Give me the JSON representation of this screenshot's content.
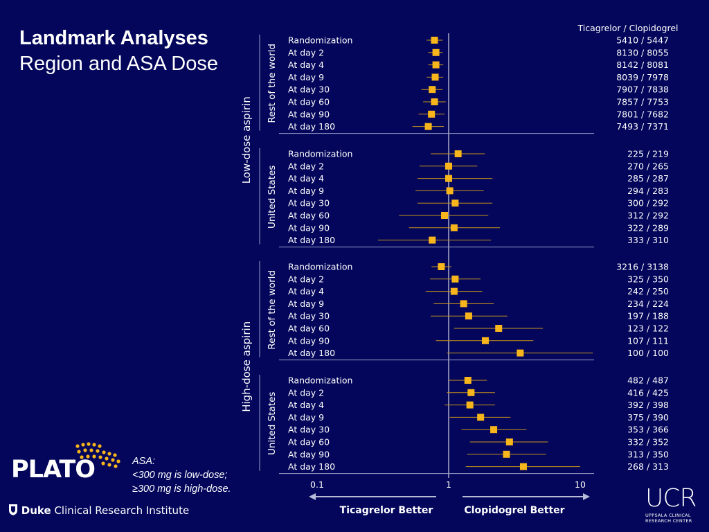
{
  "title": {
    "main": "Landmark Analyses",
    "sub": "Region and ASA Dose"
  },
  "note": {
    "line1": "ASA:",
    "line2": "<300 mg is low-dose;",
    "line3": "≥300 mg is high-dose."
  },
  "logos": {
    "plato": "PLATO",
    "duke_bold": "Duke",
    "duke_rest": "Clinical Research Institute",
    "ucr_big": "UCR",
    "ucr_small_1": "UPPSALA CLINICAL",
    "ucr_small_2": "RESEARCH CENTER"
  },
  "colors": {
    "background": "#03065a",
    "marker": "#f8b61c",
    "ci": "#c9941a",
    "text": "#ffffff",
    "axis": "#9aa0c8"
  },
  "chart_data": {
    "type": "forest",
    "x_scale": "log",
    "xlim": [
      0.1,
      10
    ],
    "x_ticks": [
      "0.1",
      "1",
      "10"
    ],
    "reference_line": 1,
    "count_header": "Ticagrelor / Clopidogrel",
    "left_arrow_label": "Ticagrelor Better",
    "right_arrow_label": "Clopidogrel Better",
    "groups": [
      {
        "dose": "Low-dose aspirin",
        "region": "Rest of the world",
        "rows": [
          {
            "label": "Randomization",
            "hr": 0.78,
            "lo": 0.68,
            "hi": 0.9,
            "counts": "5410 / 5447"
          },
          {
            "label": "At day 2",
            "hr": 0.8,
            "lo": 0.7,
            "hi": 0.9,
            "counts": "8130 / 8055"
          },
          {
            "label": "At day 4",
            "hr": 0.8,
            "lo": 0.7,
            "hi": 0.91,
            "counts": "8142 / 8081"
          },
          {
            "label": "At day 9",
            "hr": 0.79,
            "lo": 0.68,
            "hi": 0.91,
            "counts": "8039 / 7978"
          },
          {
            "label": "At day 30",
            "hr": 0.75,
            "lo": 0.62,
            "hi": 0.9,
            "counts": "7907 / 7838"
          },
          {
            "label": "At day 60",
            "hr": 0.78,
            "lo": 0.64,
            "hi": 0.95,
            "counts": "7857 / 7753"
          },
          {
            "label": "At day 90",
            "hr": 0.74,
            "lo": 0.59,
            "hi": 0.93,
            "counts": "7801 / 7682"
          },
          {
            "label": "At day 180",
            "hr": 0.7,
            "lo": 0.53,
            "hi": 0.92,
            "counts": "7493 / 7371"
          }
        ]
      },
      {
        "dose": "Low-dose aspirin",
        "region": "United States",
        "rows": [
          {
            "label": "Randomization",
            "hr": 1.18,
            "lo": 0.73,
            "hi": 1.88,
            "counts": "225 / 219"
          },
          {
            "label": "At day 2",
            "hr": 1.0,
            "lo": 0.6,
            "hi": 1.65,
            "counts": "270 / 265"
          },
          {
            "label": "At day 4",
            "hr": 1.0,
            "lo": 0.58,
            "hi": 2.15,
            "counts": "285 / 287"
          },
          {
            "label": "At day 9",
            "hr": 1.02,
            "lo": 0.56,
            "hi": 1.85,
            "counts": "294 / 283"
          },
          {
            "label": "At day 30",
            "hr": 1.12,
            "lo": 0.58,
            "hi": 2.15,
            "counts": "300 / 292"
          },
          {
            "label": "At day 60",
            "hr": 0.93,
            "lo": 0.42,
            "hi": 2.0,
            "counts": "312 / 292"
          },
          {
            "label": "At day 90",
            "hr": 1.1,
            "lo": 0.5,
            "hi": 2.45,
            "counts": "322 / 289"
          },
          {
            "label": "At day 180",
            "hr": 0.75,
            "lo": 0.29,
            "hi": 2.1,
            "counts": "333 / 310"
          }
        ]
      },
      {
        "dose": "High-dose aspirin",
        "region": "Rest of the world",
        "rows": [
          {
            "label": "Randomization",
            "hr": 0.88,
            "lo": 0.74,
            "hi": 1.05,
            "counts": "3216 / 3138"
          },
          {
            "label": "At day 2",
            "hr": 1.12,
            "lo": 0.72,
            "hi": 1.75,
            "counts": "325 / 350"
          },
          {
            "label": "At day 4",
            "hr": 1.1,
            "lo": 0.67,
            "hi": 1.8,
            "counts": "242 / 250"
          },
          {
            "label": "At day 9",
            "hr": 1.3,
            "lo": 0.77,
            "hi": 2.2,
            "counts": "234 / 224"
          },
          {
            "label": "At day 30",
            "hr": 1.42,
            "lo": 0.73,
            "hi": 2.8,
            "counts": "197 / 188"
          },
          {
            "label": "At day 60",
            "hr": 2.4,
            "lo": 1.1,
            "hi": 5.2,
            "counts": "123 / 122"
          },
          {
            "label": "At day 90",
            "hr": 1.9,
            "lo": 0.8,
            "hi": 4.4,
            "counts": "107 / 111"
          },
          {
            "label": "At day 180",
            "hr": 3.5,
            "lo": 0.97,
            "hi": 12.5,
            "counts": "100 / 100"
          }
        ]
      },
      {
        "dose": "High-dose aspirin",
        "region": "United States",
        "rows": [
          {
            "label": "Randomization",
            "hr": 1.4,
            "lo": 1.0,
            "hi": 1.95,
            "counts": "482 / 487"
          },
          {
            "label": "At day 2",
            "hr": 1.48,
            "lo": 0.97,
            "hi": 2.25,
            "counts": "416 / 425"
          },
          {
            "label": "At day 4",
            "hr": 1.45,
            "lo": 0.93,
            "hi": 2.25,
            "counts": "392 / 398"
          },
          {
            "label": "At day 9",
            "hr": 1.75,
            "lo": 1.02,
            "hi": 2.95,
            "counts": "375 / 390"
          },
          {
            "label": "At day 30",
            "hr": 2.2,
            "lo": 1.25,
            "hi": 3.9,
            "counts": "353 / 366"
          },
          {
            "label": "At day 60",
            "hr": 2.9,
            "lo": 1.45,
            "hi": 5.7,
            "counts": "332 / 352"
          },
          {
            "label": "At day 90",
            "hr": 2.75,
            "lo": 1.38,
            "hi": 5.5,
            "counts": "313 / 350"
          },
          {
            "label": "At day 180",
            "hr": 3.7,
            "lo": 1.35,
            "hi": 10.0,
            "counts": "268 / 313"
          }
        ]
      }
    ]
  }
}
